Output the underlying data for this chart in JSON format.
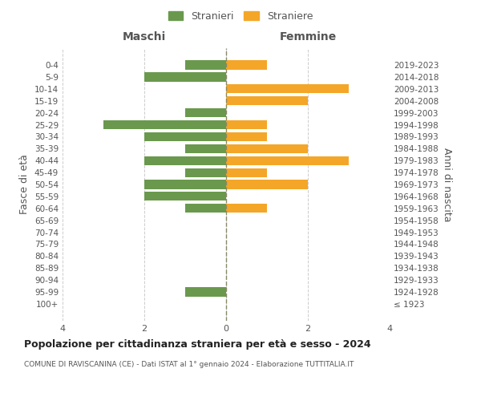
{
  "age_groups": [
    "100+",
    "95-99",
    "90-94",
    "85-89",
    "80-84",
    "75-79",
    "70-74",
    "65-69",
    "60-64",
    "55-59",
    "50-54",
    "45-49",
    "40-44",
    "35-39",
    "30-34",
    "25-29",
    "20-24",
    "15-19",
    "10-14",
    "5-9",
    "0-4"
  ],
  "birth_years": [
    "≤ 1923",
    "1924-1928",
    "1929-1933",
    "1934-1938",
    "1939-1943",
    "1944-1948",
    "1949-1953",
    "1954-1958",
    "1959-1963",
    "1964-1968",
    "1969-1973",
    "1974-1978",
    "1979-1983",
    "1984-1988",
    "1989-1993",
    "1994-1998",
    "1999-2003",
    "2004-2008",
    "2009-2013",
    "2014-2018",
    "2019-2023"
  ],
  "males": [
    0,
    1,
    0,
    0,
    0,
    0,
    0,
    0,
    1,
    2,
    2,
    1,
    2,
    1,
    2,
    3,
    1,
    0,
    0,
    2,
    1
  ],
  "females": [
    0,
    0,
    0,
    0,
    0,
    0,
    0,
    0,
    1,
    0,
    2,
    1,
    3,
    2,
    1,
    1,
    0,
    2,
    3,
    0,
    1
  ],
  "male_color": "#6a994e",
  "female_color": "#f4a628",
  "male_label": "Stranieri",
  "female_label": "Straniere",
  "title": "Popolazione per cittadinanza straniera per età e sesso - 2024",
  "subtitle": "COMUNE DI RAVISCANINA (CE) - Dati ISTAT al 1° gennaio 2024 - Elaborazione TUTTITALIA.IT",
  "left_header": "Maschi",
  "right_header": "Femmine",
  "left_ylabel": "Fasce di età",
  "right_ylabel": "Anni di nascita",
  "xlim": 4,
  "background_color": "#ffffff",
  "grid_color": "#cccccc",
  "text_color": "#555555",
  "bar_height": 0.75
}
